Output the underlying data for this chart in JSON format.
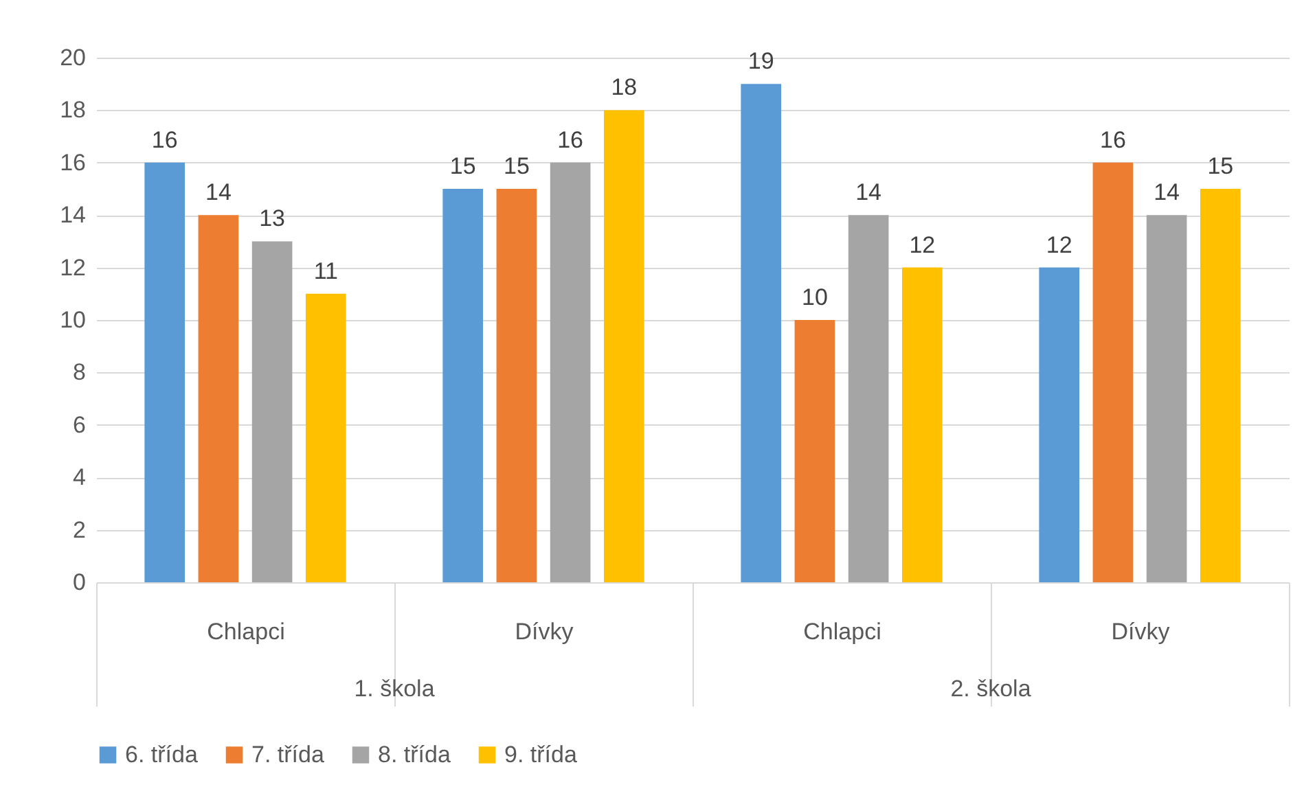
{
  "chart_data": {
    "type": "bar",
    "categories": [
      "Chlapci",
      "Dívky",
      "Chlapci",
      "Dívky"
    ],
    "series": [
      {
        "name": "6. třída",
        "color": "#5b9bd5",
        "values": [
          16,
          15,
          19,
          12
        ]
      },
      {
        "name": "7. třída",
        "color": "#ed7d31",
        "values": [
          14,
          15,
          10,
          16
        ]
      },
      {
        "name": "8. třída",
        "color": "#a5a5a5",
        "values": [
          13,
          16,
          14,
          14
        ]
      },
      {
        "name": "9. třída",
        "color": "#ffc000",
        "values": [
          11,
          18,
          12,
          15
        ]
      }
    ],
    "annotations": [
      "1. škola",
      "2. škola"
    ],
    "ylim": [
      0,
      20
    ],
    "yticks": [
      0,
      2,
      4,
      6,
      8,
      10,
      12,
      14,
      16,
      18,
      20
    ],
    "grid": "y",
    "legend": "bottom",
    "data_labels": true
  }
}
